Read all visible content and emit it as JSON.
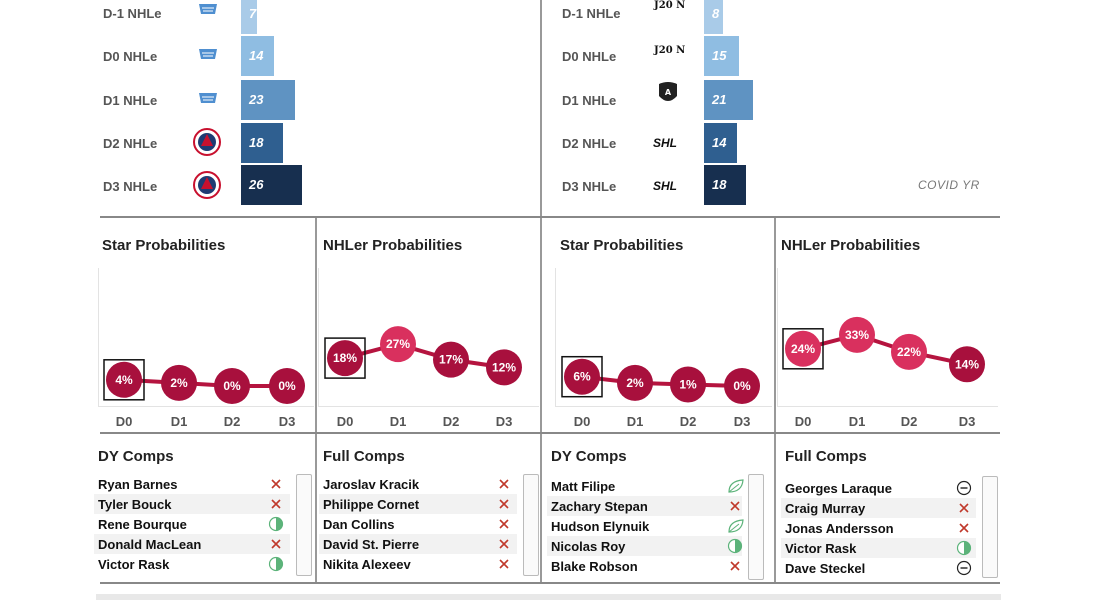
{
  "left_panel": {
    "bars": [
      {
        "label": "D-1 NHLe",
        "value": "7",
        "league": "qmjhl",
        "num": 7,
        "color": "#a9cbe8"
      },
      {
        "label": "D0 NHLe",
        "value": "14",
        "league": "qmjhl",
        "num": 14,
        "color": "#8fbde2"
      },
      {
        "label": "D1 NHLe",
        "value": "23",
        "league": "qmjhl",
        "num": 23,
        "color": "#5f93c2"
      },
      {
        "label": "D2 NHLe",
        "value": "18",
        "league": "ahl",
        "num": 18,
        "color": "#2f5f90"
      },
      {
        "label": "D3 NHLe",
        "value": "26",
        "league": "ahl",
        "num": 26,
        "color": "#172f4f"
      }
    ],
    "star_title": "Star Probabilities",
    "nhler_title": "NHLer Probabilities",
    "star_chart": {
      "type": "line",
      "categories": [
        "D0",
        "D1",
        "D2",
        "D3"
      ],
      "values": [
        4,
        2,
        0,
        0
      ],
      "labels": [
        "4%",
        "2%",
        "0%",
        "0%"
      ],
      "highlight": 0
    },
    "nhler_chart": {
      "type": "line",
      "categories": [
        "D0",
        "D1",
        "D2",
        "D3"
      ],
      "values": [
        18,
        27,
        17,
        12
      ],
      "labels": [
        "18%",
        "27%",
        "17%",
        "12%"
      ],
      "highlight": 0
    },
    "dy_title": "DY Comps",
    "dy_comps": [
      {
        "name": "Ryan Barnes",
        "icon": "x-icon"
      },
      {
        "name": "Tyler Bouck",
        "icon": "x-icon"
      },
      {
        "name": "Rene Bourque",
        "icon": "half-circle-icon"
      },
      {
        "name": "Donald MacLean",
        "icon": "x-icon"
      },
      {
        "name": "Victor Rask",
        "icon": "half-circle-icon"
      }
    ],
    "full_title": "Full Comps",
    "full_comps": [
      {
        "name": "Jaroslav Kracik",
        "icon": "x-icon"
      },
      {
        "name": "Philippe Cornet",
        "icon": "x-icon"
      },
      {
        "name": "Dan Collins",
        "icon": "x-icon"
      },
      {
        "name": "David St. Pierre",
        "icon": "x-icon"
      },
      {
        "name": "Nikita Alexeev",
        "icon": "x-icon"
      }
    ]
  },
  "right_panel": {
    "bars": [
      {
        "label": "D-1 NHLe",
        "value": "8",
        "league": "j20",
        "num": 8,
        "color": "#a9cbe8"
      },
      {
        "label": "D0 NHLe",
        "value": "15",
        "league": "j20",
        "num": 15,
        "color": "#8fbde2"
      },
      {
        "label": "D1 NHLe",
        "value": "21",
        "league": "allsvenskan",
        "num": 21,
        "color": "#5f93c2"
      },
      {
        "label": "D2 NHLe",
        "value": "14",
        "league": "shl",
        "num": 14,
        "color": "#2f5f90"
      },
      {
        "label": "D3 NHLe",
        "value": "18",
        "league": "shl",
        "num": 18,
        "color": "#172f4f"
      }
    ],
    "league_text": {
      "j20": "J20 N",
      "shl": "SHL"
    },
    "covid_note": "COVID YR",
    "star_title": "Star Probabilities",
    "nhler_title": "NHLer Probabilities",
    "star_chart": {
      "type": "line",
      "categories": [
        "D0",
        "D1",
        "D2",
        "D3"
      ],
      "values": [
        6,
        2,
        1,
        0
      ],
      "labels": [
        "6%",
        "2%",
        "1%",
        "0%"
      ],
      "highlight": 0
    },
    "nhler_chart": {
      "type": "line",
      "categories": [
        "D0",
        "D1",
        "D2",
        "D3"
      ],
      "values": [
        24,
        33,
        22,
        14
      ],
      "labels": [
        "24%",
        "33%",
        "22%",
        "14%"
      ],
      "highlight": 0
    },
    "dy_title": "DY Comps",
    "dy_comps": [
      {
        "name": "Matt Filipe",
        "icon": "leaf-icon"
      },
      {
        "name": "Zachary Stepan",
        "icon": "x-icon"
      },
      {
        "name": "Hudson Elynuik",
        "icon": "leaf-icon"
      },
      {
        "name": "Nicolas Roy",
        "icon": "half-circle-icon"
      },
      {
        "name": "Blake Robson",
        "icon": "x-icon"
      }
    ],
    "full_title": "Full Comps",
    "full_comps": [
      {
        "name": "Georges Laraque",
        "icon": "minus-circle-icon"
      },
      {
        "name": "Craig Murray",
        "icon": "x-icon"
      },
      {
        "name": "Jonas Andersson",
        "icon": "x-icon"
      },
      {
        "name": "Victor Rask",
        "icon": "half-circle-icon"
      },
      {
        "name": "Dave Steckel",
        "icon": "minus-circle-icon"
      }
    ]
  },
  "colors": {
    "probability_dark": "#a8103d",
    "probability_pink": "#d9305e",
    "line": "#b5143f",
    "x_icon": "#c0392b",
    "half_circle": "#5cb37a"
  }
}
